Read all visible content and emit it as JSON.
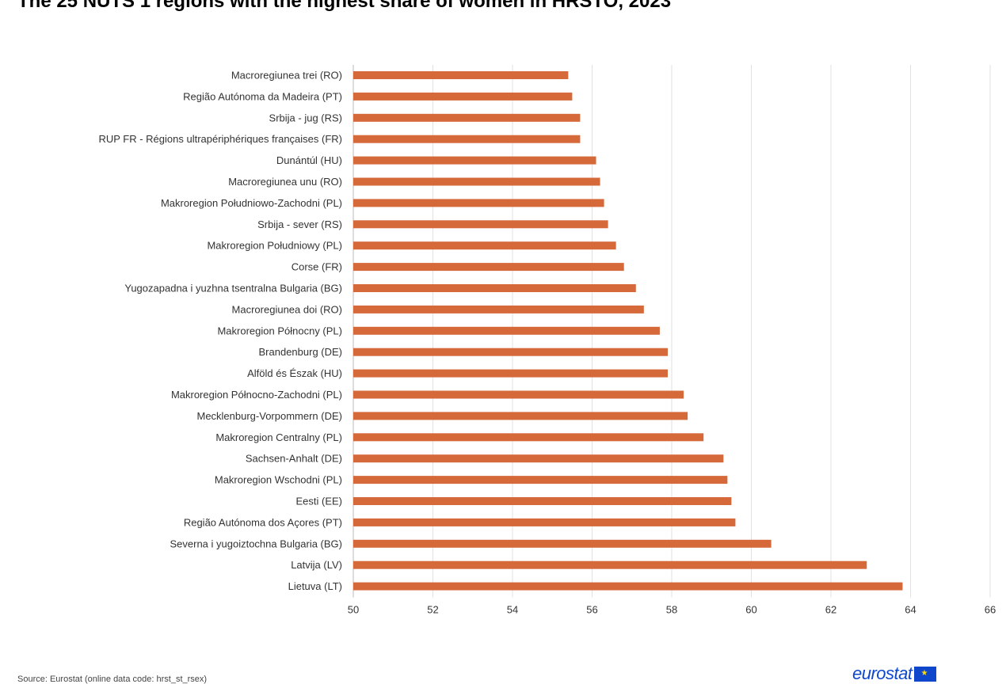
{
  "chart_data": {
    "type": "bar",
    "orientation": "horizontal",
    "title": "The 25 NUTS 1 regions with the highest share of women in HRSTO, 2023",
    "xlabel": "",
    "ylabel": "",
    "xlim": [
      50,
      66
    ],
    "ticks": [
      "50",
      "52",
      "54",
      "56",
      "58",
      "60",
      "62",
      "64",
      "66"
    ],
    "grid": true,
    "legend": "none",
    "bar_color": "#d6693a",
    "categories": [
      "Macroregiunea trei (RO)",
      "Região Autónoma da Madeira (PT)",
      "Srbija - jug (RS)",
      "RUP FR - Régions ultrapériphériques françaises (FR)",
      "Dunántúl (HU)",
      "Macroregiunea unu (RO)",
      "Makroregion Południowo-Zachodni (PL)",
      "Srbija - sever (RS)",
      "Makroregion Południowy (PL)",
      "Corse (FR)",
      "Yugozapadna i yuzhna tsentralna Bulgaria (BG)",
      "Macroregiunea doi (RO)",
      "Makroregion Północny (PL)",
      "Brandenburg (DE)",
      "Alföld és Észak (HU)",
      "Makroregion Północno-Zachodni (PL)",
      "Mecklenburg-Vorpommern (DE)",
      "Makroregion Centralny (PL)",
      "Sachsen-Anhalt (DE)",
      "Makroregion Wschodni (PL)",
      "Eesti (EE)",
      "Região Autónoma dos Açores (PT)",
      "Severna i yugoiztochna Bulgaria (BG)",
      "Latvija (LV)",
      "Lietuva (LT)"
    ],
    "values": [
      55.4,
      55.5,
      55.7,
      55.7,
      56.1,
      56.2,
      56.3,
      56.4,
      56.6,
      56.8,
      57.1,
      57.3,
      57.7,
      57.9,
      57.9,
      58.3,
      58.4,
      58.8,
      59.3,
      59.4,
      59.5,
      59.6,
      60.5,
      62.9,
      63.8
    ]
  },
  "footer": {
    "source": "Source: Eurostat (online data code: hrst_st_rsex)",
    "logo_text": "eurostat"
  }
}
